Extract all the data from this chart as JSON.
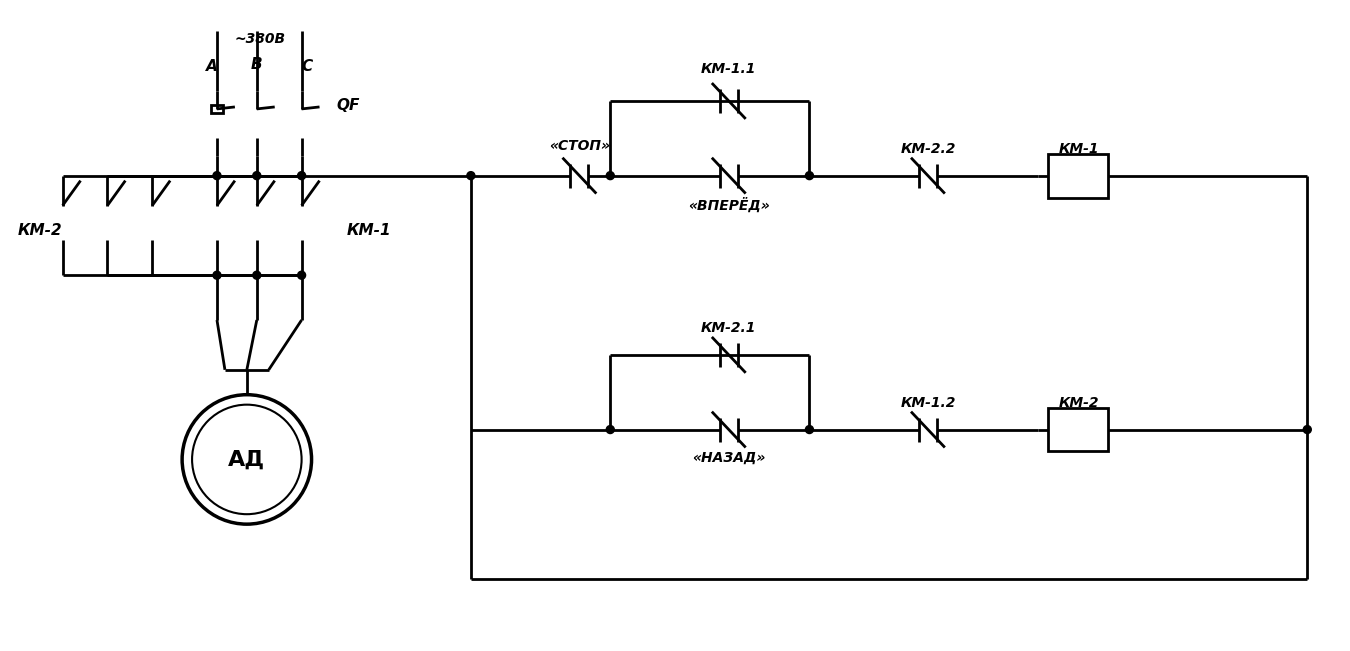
{
  "bg_color": "#ffffff",
  "line_color": "#000000",
  "lw": 2.0,
  "lw_thick": 2.5,
  "font_size": 11,
  "font_size_small": 10,
  "font_size_large": 16,
  "title_380": "~380В",
  "label_A": "A",
  "label_B": "B",
  "label_C": "C",
  "label_QF": "QF",
  "label_KM1_power": "КМ-1",
  "label_KM2_power": "КМ-2",
  "label_AD": "АД",
  "label_STOP": "«СТОП»",
  "label_FORWARD": "«ВПЕРЁД»",
  "label_BACK": "«НАЗАД»",
  "label_KM11": "КМ-1.1",
  "label_KM22": "КМ-2.2",
  "label_KM1_coil": "КМ-1",
  "label_KM21": "КМ-2.1",
  "label_KM12": "КМ-1.2",
  "label_KM2_coil": "КМ-2"
}
